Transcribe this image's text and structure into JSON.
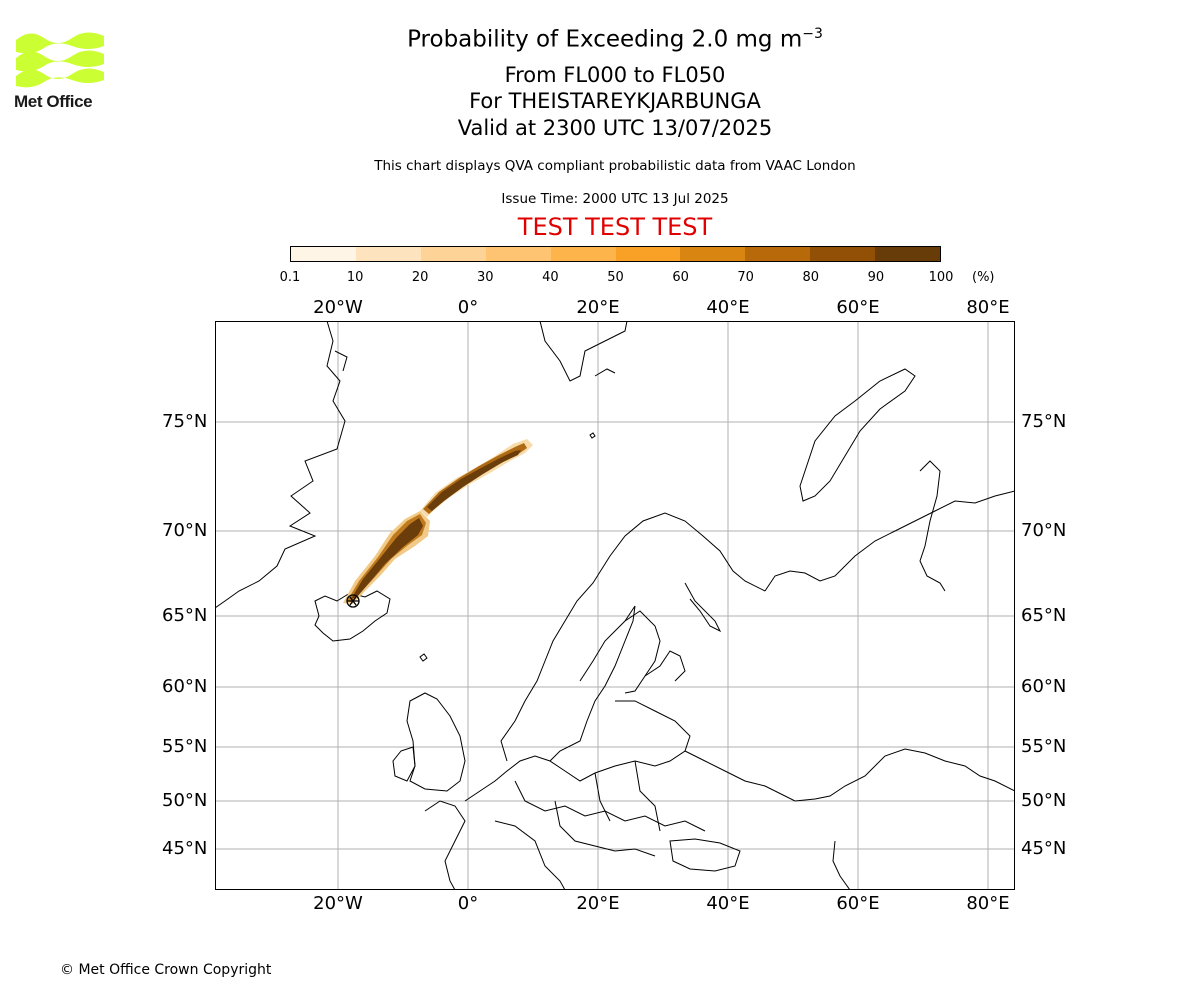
{
  "brand": {
    "name": "Met Office",
    "logo_color": "#ccff33"
  },
  "title": {
    "line1": "Probability of Exceeding 2.0 mg m",
    "line1_exponent": "−3",
    "line2": "From FL000 to FL050",
    "line3": "For THEISTAREYKJARBUNGA",
    "line4": "Valid at 2300 UTC 13/07/2025"
  },
  "subtitle": "This chart displays QVA compliant probabilistic data from VAAC London",
  "issue_time": "Issue Time: 2000 UTC 13 Jul 2025",
  "test_banner": "TEST TEST TEST",
  "colorbar": {
    "ticks": [
      "0.1",
      "10",
      "20",
      "30",
      "40",
      "50",
      "60",
      "70",
      "80",
      "90",
      "100"
    ],
    "unit": "(%)",
    "colors": [
      "#fff5e6",
      "#fee3bf",
      "#fed398",
      "#fec471",
      "#fdb44a",
      "#f9a126",
      "#d98512",
      "#b8690a",
      "#925006",
      "#673c08"
    ]
  },
  "map": {
    "lon_labels": [
      "20°W",
      "0°",
      "20°E",
      "40°E",
      "60°E",
      "80°E"
    ],
    "lat_labels": [
      "75°N",
      "70°N",
      "65°N",
      "60°N",
      "55°N",
      "50°N",
      "45°N"
    ],
    "grid_color": "#b0b0b0",
    "volcano": "THEISTAREYKJARBUNGA",
    "plume_color": "#6b3d0a"
  },
  "copyright": "© Met Office Crown Copyright"
}
